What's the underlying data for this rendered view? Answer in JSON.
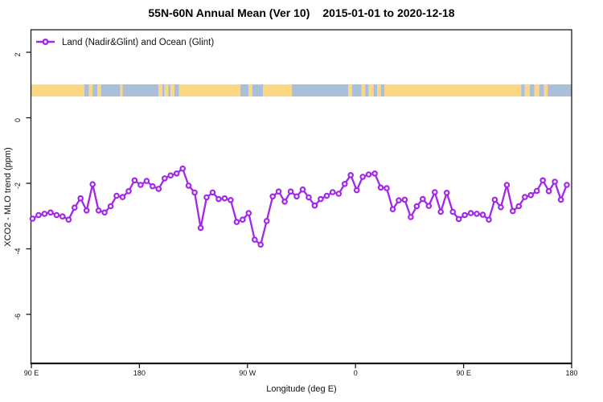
{
  "title": {
    "left": "55N-60N Annual Mean (Ver 10)",
    "right": "2015-01-01 to 2020-12-18",
    "full": "55N-60N Annual Mean (Ver 10)   2015-01-01 to 2020-12-18"
  },
  "legend": {
    "label": "Land (Nadir&Glint) and Ocean (Glint)",
    "series_color": "#a227ea"
  },
  "axes": {
    "x_label": "Longitude (deg E)",
    "y_label": "XCO2 - MLO trend (ppm)"
  },
  "chart_data": {
    "type": "line",
    "title": "55N-60N Annual Mean (Ver 10)   2015-01-01 to 2020-12-18",
    "xlabel": "Longitude (deg E)",
    "ylabel": "XCO2 - MLO trend (ppm)",
    "x_axis_note": "longitude in continuing degrees east, 90E wrapping eastward to 180",
    "xlim": [
      90,
      540
    ],
    "ylim": [
      -7.5,
      2.7
    ],
    "grid": false,
    "legend_position": "top-left-inside",
    "x_ticks": [
      {
        "lon": 90,
        "label": "90 E"
      },
      {
        "lon": 180,
        "label": "180"
      },
      {
        "lon": 270,
        "label": "90 W"
      },
      {
        "lon": 360,
        "label": "0"
      },
      {
        "lon": 450,
        "label": "90 E"
      },
      {
        "lon": 540,
        "label": "180"
      }
    ],
    "y_ticks": [
      {
        "v": 2,
        "label": "2"
      },
      {
        "v": 0,
        "label": "0"
      },
      {
        "v": -2,
        "label": "-2"
      },
      {
        "v": -4,
        "label": "-4"
      },
      {
        "v": -6,
        "label": "-6"
      }
    ],
    "series": [
      {
        "name": "Land (Nadir&Glint) and Ocean (Glint)",
        "color": "#a227ea",
        "marker": "open-circle",
        "lon": [
          91,
          96,
          101,
          106,
          111,
          116,
          121,
          126,
          131,
          136,
          141,
          146,
          151,
          156,
          161,
          166,
          171,
          176,
          181,
          186,
          191,
          196,
          201,
          206,
          211,
          216,
          221,
          226,
          231,
          236,
          241,
          246,
          251,
          256,
          261,
          266,
          271,
          276,
          281,
          286,
          291,
          296,
          301,
          306,
          311,
          316,
          321,
          326,
          331,
          336,
          341,
          346,
          351,
          356,
          361,
          366,
          371,
          376,
          381,
          386,
          391,
          396,
          401,
          406,
          411,
          416,
          421,
          426,
          431,
          436,
          441,
          446,
          451,
          456,
          461,
          466,
          471,
          476,
          481,
          486,
          491,
          496,
          501,
          506,
          511,
          516,
          521,
          526,
          531,
          536
        ],
        "values": [
          -3.08,
          -2.97,
          -2.93,
          -2.89,
          -2.97,
          -3.01,
          -3.11,
          -2.74,
          -2.46,
          -2.83,
          -2.03,
          -2.83,
          -2.89,
          -2.7,
          -2.38,
          -2.42,
          -2.24,
          -1.91,
          -2.05,
          -1.93,
          -2.09,
          -2.17,
          -1.85,
          -1.76,
          -1.7,
          -1.55,
          -2.07,
          -2.28,
          -3.36,
          -2.43,
          -2.28,
          -2.48,
          -2.46,
          -2.51,
          -3.18,
          -3.11,
          -2.91,
          -3.72,
          -3.87,
          -3.15,
          -2.4,
          -2.25,
          -2.56,
          -2.25,
          -2.4,
          -2.19,
          -2.43,
          -2.68,
          -2.48,
          -2.38,
          -2.27,
          -2.32,
          -2.02,
          -1.75,
          -2.21,
          -1.8,
          -1.73,
          -1.7,
          -2.13,
          -2.15,
          -2.79,
          -2.52,
          -2.5,
          -3.03,
          -2.7,
          -2.48,
          -2.69,
          -2.27,
          -2.87,
          -2.29,
          -2.87,
          -3.09,
          -2.97,
          -2.91,
          -2.93,
          -2.96,
          -3.11,
          -2.5,
          -2.73,
          -2.05,
          -2.85,
          -2.7,
          -2.42,
          -2.36,
          -2.23,
          -1.91,
          -2.24,
          -1.95,
          -2.5,
          -2.05
        ]
      }
    ],
    "land_ocean_strip": {
      "description": "land/ocean mask band for 55N-60N plotted across the top of the axes",
      "band_value_range": [
        0.65,
        1.02
      ],
      "land_color": "#fcd884",
      "ocean_color": "#a9bfda",
      "segments": [
        [
          90,
          134,
          "land"
        ],
        [
          134,
          138,
          "ocean"
        ],
        [
          138,
          141,
          "land"
        ],
        [
          141,
          145,
          "ocean"
        ],
        [
          145,
          148,
          "land"
        ],
        [
          148,
          164,
          "ocean"
        ],
        [
          164,
          166,
          "land"
        ],
        [
          166,
          196,
          "ocean"
        ],
        [
          196,
          199,
          "land"
        ],
        [
          199,
          201,
          "ocean"
        ],
        [
          201,
          204,
          "land"
        ],
        [
          204,
          206,
          "ocean"
        ],
        [
          206,
          209,
          "land"
        ],
        [
          209,
          213,
          "ocean"
        ],
        [
          213,
          264,
          "land"
        ],
        [
          264,
          271,
          "ocean"
        ],
        [
          271,
          274,
          "land"
        ],
        [
          274,
          283,
          "ocean"
        ],
        [
          283,
          307,
          "land"
        ],
        [
          307,
          354,
          "ocean"
        ],
        [
          354,
          357,
          "land"
        ],
        [
          357,
          365,
          "ocean"
        ],
        [
          365,
          368,
          "land"
        ],
        [
          368,
          371,
          "ocean"
        ],
        [
          371,
          375,
          "land"
        ],
        [
          375,
          378,
          "ocean"
        ],
        [
          378,
          381,
          "land"
        ],
        [
          381,
          384,
          "ocean"
        ],
        [
          384,
          498,
          "land"
        ],
        [
          498,
          501,
          "ocean"
        ],
        [
          501,
          505,
          "land"
        ],
        [
          505,
          509,
          "ocean"
        ],
        [
          509,
          513,
          "land"
        ],
        [
          513,
          517,
          "ocean"
        ],
        [
          517,
          520,
          "land"
        ],
        [
          520,
          540,
          "ocean"
        ]
      ]
    }
  }
}
